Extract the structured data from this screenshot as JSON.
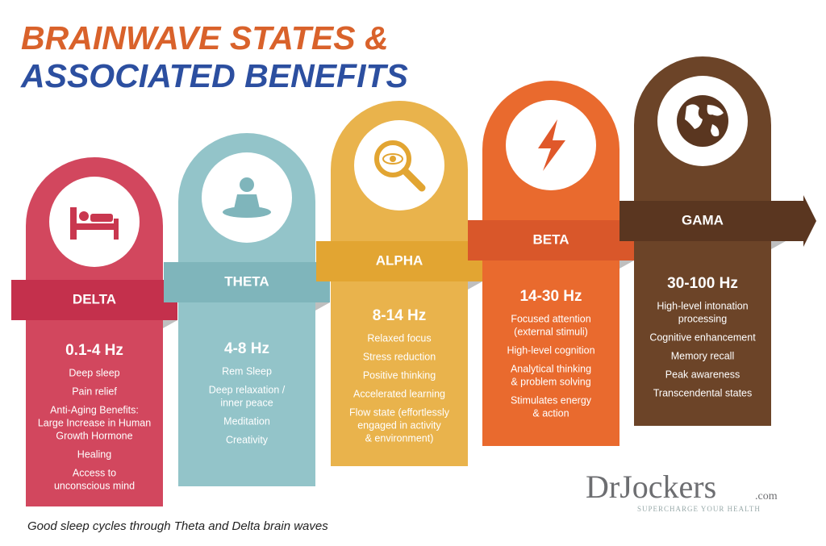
{
  "header": {
    "title_line1": "BRAINWAVE STATES &",
    "title_line2": "ASSOCIATED BENEFITS"
  },
  "columns": [
    {
      "name": "DELTA",
      "frequency": "0.1-4 Hz",
      "benefits": [
        [
          "Deep sleep"
        ],
        [
          "Pain relief"
        ],
        [
          "Anti-Aging Benefits:",
          "Large Increase in Human",
          "Growth Hormone"
        ],
        [
          "Healing"
        ],
        [
          "Access to",
          "unconscious mind"
        ]
      ]
    },
    {
      "name": "THETA",
      "frequency": "4-8 Hz",
      "benefits": [
        [
          "Rem Sleep"
        ],
        [
          "Deep relaxation /",
          "inner peace"
        ],
        [
          "Meditation"
        ],
        [
          "Creativity"
        ]
      ]
    },
    {
      "name": "ALPHA",
      "frequency": "8-14 Hz",
      "benefits": [
        [
          "Relaxed focus"
        ],
        [
          "Stress reduction"
        ],
        [
          "Positive thinking"
        ],
        [
          "Accelerated learning"
        ],
        [
          "Flow state (effortlessly",
          "engaged in activity",
          "& environment)"
        ]
      ]
    },
    {
      "name": "BETA",
      "frequency": "14-30 Hz",
      "benefits": [
        [
          "Focused attention",
          "(external stimuli)"
        ],
        [
          "High-level cognition"
        ],
        [
          "Analytical thinking",
          "& problem solving"
        ],
        [
          "Stimulates energy",
          "& action"
        ]
      ]
    },
    {
      "name": "GAMA",
      "frequency": "30-100 Hz",
      "benefits": [
        [
          "High-level intonation",
          "processing"
        ],
        [
          "Cognitive enhancement"
        ],
        [
          "Memory recall"
        ],
        [
          "Peak awareness"
        ],
        [
          "Transcendental states"
        ]
      ]
    }
  ],
  "footer": {
    "caption": "Good sleep cycles through Theta and Delta brain waves",
    "logo": "DrJockers",
    "logo_suffix": ".com",
    "tagline": "SUPERCHARGE YOUR HEALTH"
  }
}
